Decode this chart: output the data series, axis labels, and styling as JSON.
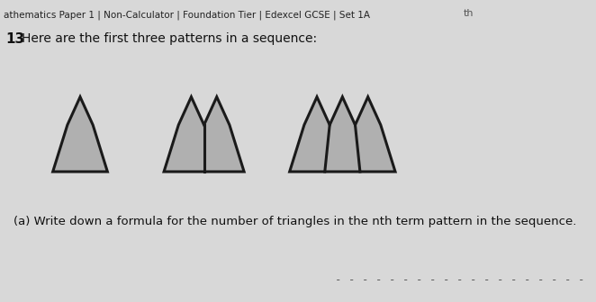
{
  "header": "athematics Paper 1 | Non-Calculator | Foundation Tier | Edexcel GCSE | Set 1A",
  "question_num": "13",
  "question_text": "Here are the first three patterns in a sequence:",
  "part_a": "(a) Write down a formula for the number of triangles in the nth term pattern in the sequence.",
  "bg_color": "#d8d8d8",
  "fill_color": "#b0b0b0",
  "line_color": "#1a1a1a",
  "line_width": 2.2,
  "dash_line": "- - - - - - - - - - - - - - - - - - -"
}
